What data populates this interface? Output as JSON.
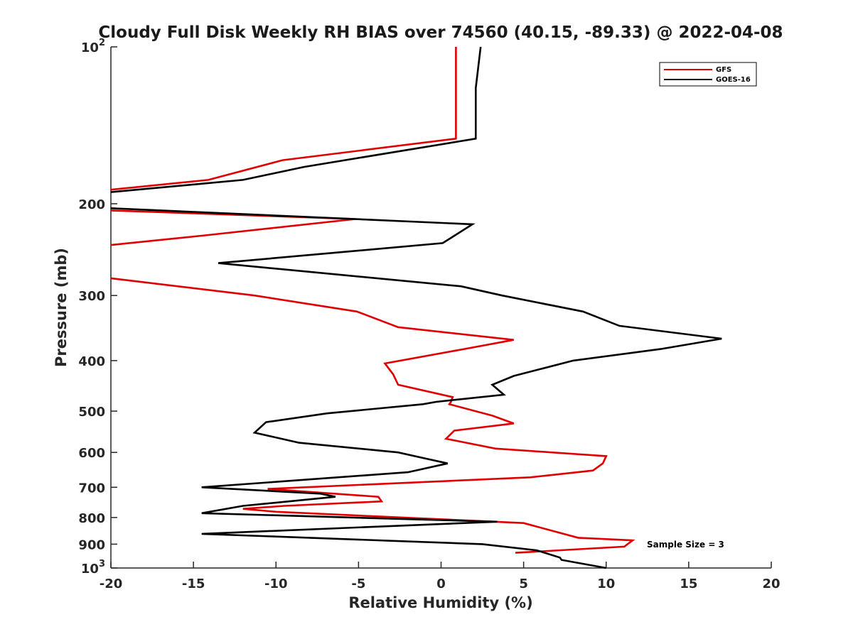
{
  "chart_data": {
    "type": "line",
    "title": "Cloudy Full Disk Weekly RH BIAS over 74560 (40.15, -89.33) @ 2022-04-08",
    "xlabel": "Relative Humidity (%)",
    "ylabel": "Pressure (mb)",
    "xlim": [
      -20,
      20
    ],
    "ylim": [
      100,
      1000
    ],
    "y_scale": "log",
    "y_reversed": true,
    "grid": false,
    "legend_position": "top-right",
    "x_ticks": [
      -20,
      -15,
      -10,
      -5,
      0,
      5,
      10,
      15,
      20
    ],
    "x_tick_labels": [
      "-20",
      "-15",
      "-10",
      "-5",
      "0",
      "5",
      "10",
      "15",
      "20"
    ],
    "y_ticks": [
      {
        "value": 100,
        "base": "10",
        "exp": "2"
      },
      {
        "value": 200,
        "label": "200"
      },
      {
        "value": 300,
        "label": "300"
      },
      {
        "value": 400,
        "label": "400"
      },
      {
        "value": 500,
        "label": "500"
      },
      {
        "value": 600,
        "label": "600"
      },
      {
        "value": 700,
        "label": "700"
      },
      {
        "value": 800,
        "label": "800"
      },
      {
        "value": 900,
        "label": "900"
      },
      {
        "value": 1000,
        "base": "10",
        "exp": "3"
      }
    ],
    "annotation": "Sample Size = 3",
    "series": [
      {
        "name": "GFS",
        "color": "#e00000",
        "points": [
          [
            0.9,
            100
          ],
          [
            0.9,
            150
          ],
          [
            -9.6,
            165
          ],
          [
            -14.1,
            180
          ],
          [
            -20,
            188
          ],
          [
            null,
            null
          ],
          [
            -20,
            206
          ],
          [
            -5.2,
            214
          ],
          [
            -14.3,
            230
          ],
          [
            -20,
            240
          ],
          [
            null,
            null
          ],
          [
            -20,
            278
          ],
          [
            -11.3,
            300
          ],
          [
            -5.1,
            322
          ],
          [
            -2.6,
            345
          ],
          [
            4.4,
            365
          ],
          [
            1.4,
            380
          ],
          [
            -3.4,
            405
          ],
          [
            -2.9,
            425
          ],
          [
            -2.6,
            445
          ],
          [
            0.7,
            470
          ],
          [
            0.6,
            480
          ],
          [
            0.5,
            485
          ],
          [
            3.1,
            510
          ],
          [
            4.4,
            528
          ],
          [
            0.8,
            545
          ],
          [
            0.3,
            565
          ],
          [
            3.3,
            590
          ],
          [
            10.0,
            610
          ],
          [
            9.8,
            630
          ],
          [
            9.2,
            650
          ],
          [
            5.4,
            670
          ],
          [
            -10.5,
            705
          ],
          [
            -3.8,
            730
          ],
          [
            -3.6,
            745
          ],
          [
            -9.5,
            760
          ],
          [
            -12.0,
            770
          ],
          [
            -10.0,
            780
          ],
          [
            5.0,
            820
          ],
          [
            8.3,
            875
          ],
          [
            11.6,
            885
          ],
          [
            11.1,
            910
          ],
          [
            4.5,
            935
          ]
        ]
      },
      {
        "name": "GOES-16",
        "color": "#000000",
        "points": [
          [
            2.4,
            100
          ],
          [
            2.1,
            120
          ],
          [
            2.1,
            150
          ],
          [
            -8.3,
            170
          ],
          [
            -12.0,
            180
          ],
          [
            -20,
            190
          ],
          [
            null,
            null
          ],
          [
            -20,
            204
          ],
          [
            1.9,
            219
          ],
          [
            0.1,
            238
          ],
          [
            -13.5,
            260
          ],
          [
            1.2,
            288
          ],
          [
            3.7,
            300
          ],
          [
            8.6,
            322
          ],
          [
            10.8,
            343
          ],
          [
            17.0,
            363
          ],
          [
            13.3,
            380
          ],
          [
            8.0,
            400
          ],
          [
            4.4,
            428
          ],
          [
            3.1,
            445
          ],
          [
            3.8,
            465
          ],
          [
            -0.3,
            480
          ],
          [
            -1.1,
            485
          ],
          [
            -6.9,
            505
          ],
          [
            -10.6,
            525
          ],
          [
            -11.3,
            550
          ],
          [
            -8.6,
            575
          ],
          [
            -2.6,
            600
          ],
          [
            -1.1,
            615
          ],
          [
            0.4,
            630
          ],
          [
            -2.0,
            655
          ],
          [
            -14.5,
            700
          ],
          [
            -7.3,
            720
          ],
          [
            -6.4,
            730
          ],
          [
            -12.0,
            760
          ],
          [
            -14.5,
            785
          ],
          [
            3.4,
            815
          ],
          [
            -14.5,
            860
          ],
          [
            2.5,
            900
          ],
          [
            5.8,
            925
          ],
          [
            7.2,
            955
          ],
          [
            7.3,
            965
          ],
          [
            10.0,
            1000
          ]
        ]
      }
    ]
  }
}
